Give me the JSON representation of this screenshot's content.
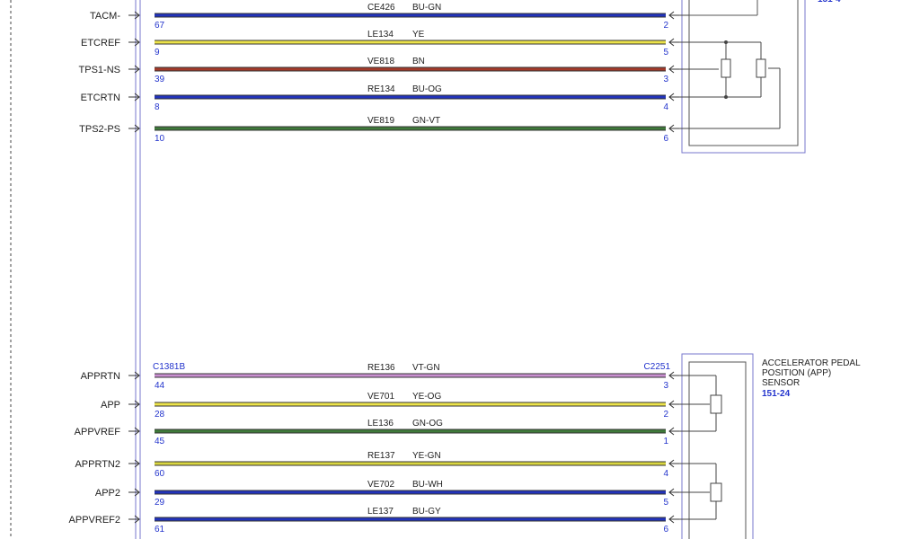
{
  "diagram": {
    "top_wires": [
      {
        "signal": "TACM-",
        "circuit": "CE426",
        "color_code": "BU-GN",
        "pin_left": "67",
        "pin_right": "2",
        "color": "#2233bb"
      },
      {
        "signal": "ETCREF",
        "circuit": "LE134",
        "color_code": "YE",
        "pin_left": "9",
        "pin_right": "5",
        "color": "#ece34a"
      },
      {
        "signal": "TPS1-NS",
        "circuit": "VE818",
        "color_code": "BN",
        "pin_left": "39",
        "pin_right": "3",
        "color": "#a33a2a"
      },
      {
        "signal": "ETCRTN",
        "circuit": "RE134",
        "color_code": "BU-OG",
        "pin_left": "8",
        "pin_right": "4",
        "color": "#2233bb"
      },
      {
        "signal": "TPS2-PS",
        "circuit": "VE819",
        "color_code": "GN-VT",
        "pin_left": "10",
        "pin_right": "6",
        "color": "#3f7a3a"
      }
    ],
    "bottom_wires": [
      {
        "signal": "APPRTN",
        "circuit": "RE136",
        "color_code": "VT-GN",
        "pin_left": "44",
        "pin_right": "3",
        "color": "#c98fd0"
      },
      {
        "signal": "APP",
        "circuit": "VE701",
        "color_code": "YE-OG",
        "pin_left": "28",
        "pin_right": "2",
        "color": "#ece34a"
      },
      {
        "signal": "APPVREF",
        "circuit": "LE136",
        "color_code": "GN-OG",
        "pin_left": "45",
        "pin_right": "1",
        "color": "#3f7a3a"
      },
      {
        "signal": "APPRTN2",
        "circuit": "RE137",
        "color_code": "YE-GN",
        "pin_left": "60",
        "pin_right": "4",
        "color": "#d9d640"
      },
      {
        "signal": "APP2",
        "circuit": "VE702",
        "color_code": "BU-WH",
        "pin_left": "29",
        "pin_right": "5",
        "color": "#2233bb"
      },
      {
        "signal": "APPVREF2",
        "circuit": "LE137",
        "color_code": "BU-GY",
        "pin_left": "61",
        "pin_right": "6",
        "color": "#2233bb"
      }
    ],
    "connector_left": "C1381B",
    "connector_right": "C2251",
    "app_sensor": {
      "name_lines": [
        "ACCELERATOR PEDAL",
        "POSITION (APP)",
        "SENSOR"
      ],
      "ref": "151-24"
    }
  }
}
